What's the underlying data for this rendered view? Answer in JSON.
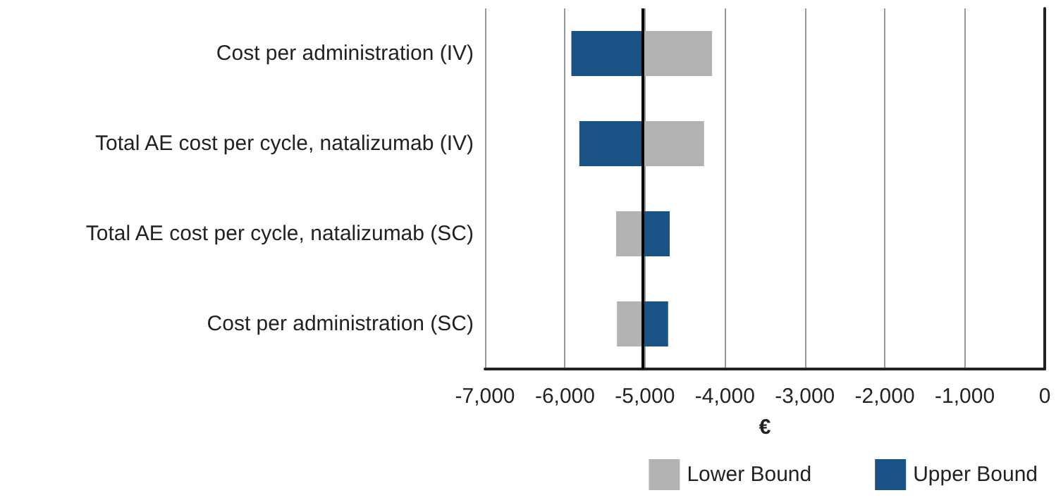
{
  "chart_data": {
    "type": "bar",
    "orientation": "horizontal",
    "xlabel": "€",
    "categories": [
      "Cost per administration (IV)",
      "Total AE cost per cycle, natalizumab (IV)",
      "Total AE cost per cycle, natalizumab (SC)",
      "Cost per administration (SC)"
    ],
    "series": [
      {
        "name": "Lower Bound",
        "color": "#b3b3b3",
        "base": [
          -5030,
          -5030,
          -5030,
          -5030
        ],
        "values": [
          870,
          770,
          -330,
          -320
        ]
      },
      {
        "name": "Upper Bound",
        "color": "#1a5286",
        "base": [
          -5030,
          -5030,
          -5030,
          -5030
        ],
        "values": [
          -890,
          -790,
          340,
          320
        ]
      }
    ],
    "xlim": [
      -7000,
      0
    ],
    "xticks": [
      {
        "value": -7000,
        "label": "-7,000"
      },
      {
        "value": -6000,
        "label": "-6,000"
      },
      {
        "value": -5000,
        "label": "-5,000"
      },
      {
        "value": -4000,
        "label": "-4,000"
      },
      {
        "value": -3000,
        "label": "-3,000"
      },
      {
        "value": -2000,
        "label": "-2,000"
      },
      {
        "value": -1000,
        "label": "-1,000"
      },
      0
    ],
    "ref_lines": [
      {
        "axis": "x",
        "value": -5030,
        "color": "#000000"
      }
    ],
    "grid": "x",
    "legend": "bottom"
  }
}
